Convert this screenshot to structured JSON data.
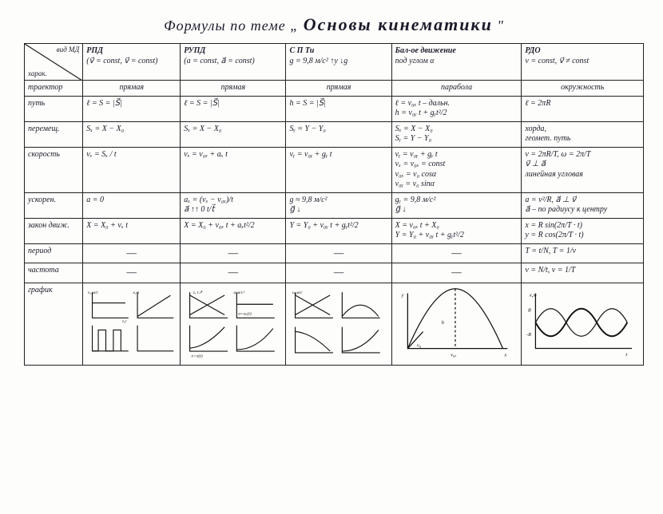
{
  "title_prefix": "Формулы по теме „",
  "title_main": "Основы кинематики",
  "title_suffix": "\"",
  "diag_top": "вид МД",
  "diag_bot": "харак.",
  "columns": {
    "c1": {
      "head": "РПД",
      "sub": "(v⃗ = const, v⃗ = const)"
    },
    "c2": {
      "head": "РУПД",
      "sub": "(a = const, a⃗ = const)"
    },
    "c3": {
      "head": "С П Ти",
      "sub": "g = 9,8 м/с²  ↑y  ↓g"
    },
    "c4": {
      "head": "Бал-ое движение",
      "sub": "под углом α"
    },
    "c5": {
      "head": "РДО",
      "sub": "v = const, v⃗ ≠ const"
    }
  },
  "rows": {
    "traj": {
      "label": "траектор",
      "c1": "прямая",
      "c2": "прямая",
      "c3": "прямая",
      "c4": "парабола",
      "c5": "окружность"
    },
    "path": {
      "label": "путь",
      "c1": "ℓ = S = |S⃗|",
      "c2": "ℓ = S = |S⃗|",
      "c3": "h = S = |S⃗|",
      "c4": "ℓ = v₀ₓ t – дальн.\nh = v₀ᵧ t + gᵧt²/2",
      "c5": "ℓ = 2πR"
    },
    "disp": {
      "label": "перемещ.",
      "c1": "Sₓ = X − X₀",
      "c2": "Sₓ = X − X₀",
      "c3": "Sᵧ = Y − Y₀",
      "c4": "Sₓ = X − X₀\nSᵧ = Y − Y₀",
      "c5": "хорда,\nгеомет. путь"
    },
    "vel": {
      "label": "скорость",
      "c1": "vₓ = Sₓ / t",
      "c2": "vₓ = v₀ₓ + aₓ t",
      "c3": "vᵧ = v₀ᵧ + gᵧ t",
      "c4": "vᵧ = v₀ᵧ + gᵧ t\nvₓ = v₀ₓ = const\nv₀ₓ = v₀ cosα\nv₀ᵧ = v₀ sinα",
      "c5": "v = 2πR/T,  ω = 2π/T\nv⃗ ⊥ a⃗\nлинейная  угловая"
    },
    "acc": {
      "label": "ускорен.",
      "c1": "a = 0",
      "c2": "aₓ = (vₓ − v₀ₓ)/t\na⃗ ↑↑ 0  t/t⃗",
      "c3": "g ≈ 9,8 м/с²\ng⃗ ↓",
      "c4": "gᵧ = 9,8 м/с²\ng⃗ ↓",
      "c5": "a = v²/R,  a⃗ ⊥ v⃗\na⃗ – по радиусу к центру"
    },
    "law": {
      "label": "закон движ.",
      "c1": "X = X₀ + vₓ t",
      "c2": "X = X₀ + v₀ₓ t + aₓt²/2",
      "c3": "Y = Y₀ + v₀ᵧ t + gᵧt²/2",
      "c4": "X = v₀ₓ t + X₀\nY = Y₀ + v₀ᵧ t + gᵧt²/2",
      "c5": "x = R sin(2π/T · t)\ny = R cos(2π/T · t)"
    },
    "period": {
      "label": "период",
      "c1": "—",
      "c2": "—",
      "c3": "—",
      "c4": "—",
      "c5": "T = t/N,  T = 1/ν"
    },
    "freq": {
      "label": "частота",
      "c1": "—",
      "c2": "—",
      "c3": "—",
      "c4": "—",
      "c5": "ν = N/t,  ν = 1/T"
    },
    "graph": {
      "label": "график"
    }
  },
  "graph_style": {
    "stroke": "#111122",
    "stroke_width": 1.2,
    "font_size": 6
  }
}
